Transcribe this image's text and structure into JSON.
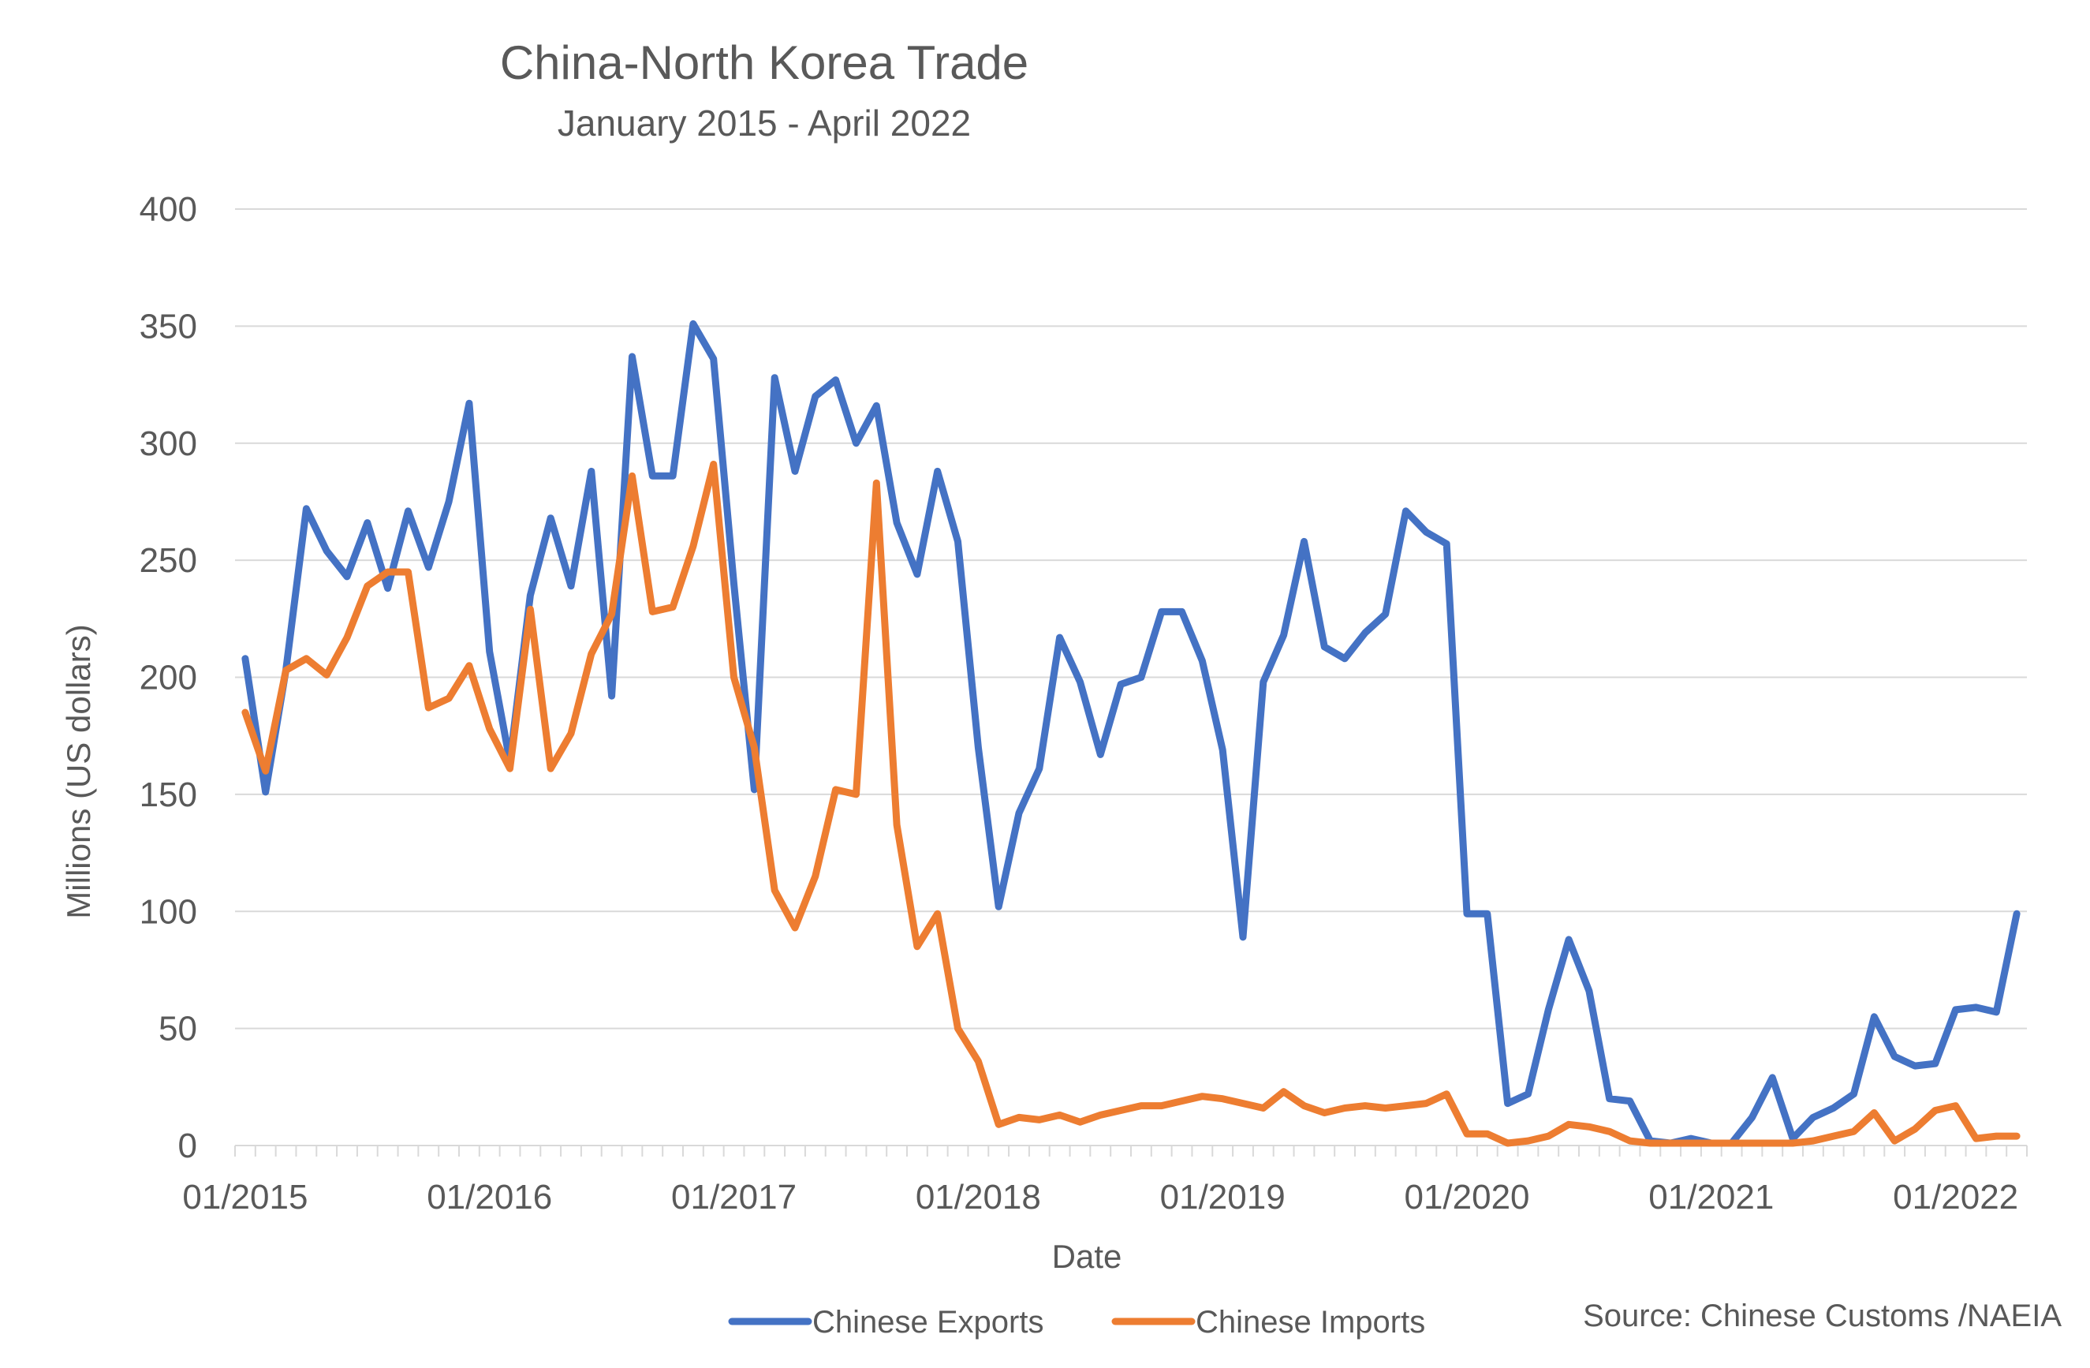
{
  "chart_data": {
    "type": "line",
    "title": "China-North Korea Trade",
    "subtitle": "January 2015 - April 2022",
    "xlabel": "Date",
    "ylabel": "Millions (US dollars)",
    "ylim": [
      0,
      400
    ],
    "yticks": [
      0,
      50,
      100,
      150,
      200,
      250,
      300,
      350,
      400
    ],
    "xticks": [
      "01/2015",
      "01/2016",
      "01/2017",
      "01/2018",
      "01/2019",
      "01/2020",
      "01/2021",
      "01/2022"
    ],
    "x_start": "01/2015",
    "x_end": "04/2022",
    "grid": true,
    "legend_position": "bottom",
    "source": "Source: Chinese Customs /NAEIA",
    "series": [
      {
        "name": "Chinese Exports",
        "color": "#4472C4",
        "values": [
          208,
          151,
          203,
          272,
          254,
          243,
          266,
          238,
          271,
          247,
          275,
          317,
          211,
          164,
          235,
          268,
          239,
          288,
          192,
          337,
          286,
          286,
          351,
          336,
          240,
          152,
          328,
          288,
          320,
          327,
          300,
          316,
          266,
          244,
          288,
          258,
          170,
          102,
          142,
          161,
          217,
          198,
          167,
          197,
          200,
          228,
          228,
          207,
          169,
          89,
          198,
          218,
          258,
          213,
          208,
          219,
          227,
          271,
          262,
          257,
          99,
          99,
          18,
          22,
          58,
          88,
          66,
          20,
          19,
          2,
          1,
          3,
          1,
          1,
          12,
          29,
          3,
          12,
          16,
          22,
          55,
          38,
          34,
          35,
          58,
          59,
          57,
          99
        ]
      },
      {
        "name": "Chinese Imports",
        "color": "#ED7D31",
        "values": [
          185,
          160,
          203,
          208,
          201,
          217,
          239,
          245,
          245,
          187,
          191,
          205,
          178,
          161,
          229,
          161,
          176,
          210,
          227,
          286,
          228,
          230,
          256,
          291,
          200,
          170,
          109,
          93,
          115,
          152,
          150,
          283,
          137,
          85,
          99,
          50,
          36,
          9,
          12,
          11,
          13,
          10,
          13,
          15,
          17,
          17,
          19,
          21,
          20,
          18,
          16,
          23,
          17,
          14,
          16,
          17,
          16,
          17,
          18,
          22,
          5,
          5,
          1,
          2,
          4,
          9,
          8,
          6,
          2,
          1,
          1,
          1,
          1,
          1,
          1,
          1,
          1,
          2,
          4,
          6,
          14,
          2,
          7,
          15,
          17,
          3,
          4,
          4
        ]
      }
    ]
  }
}
